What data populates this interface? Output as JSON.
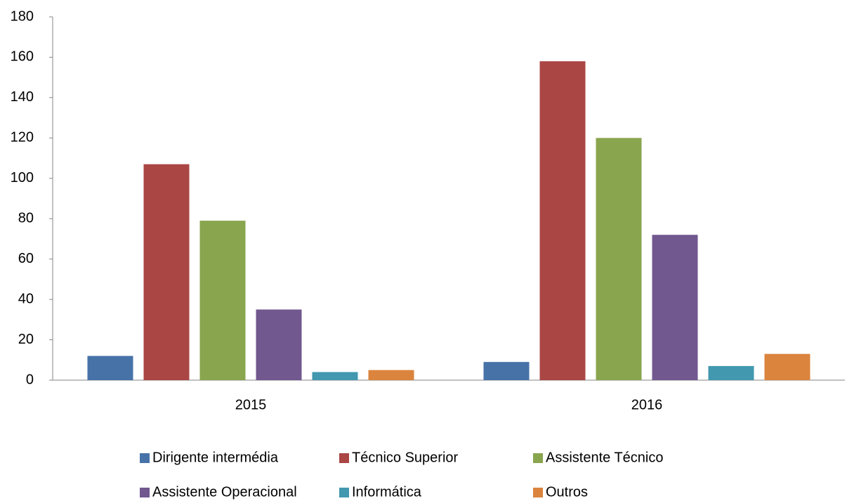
{
  "chart_data": {
    "type": "bar",
    "categories": [
      "2015",
      "2016"
    ],
    "series": [
      {
        "name": "Dirigente intermédia",
        "color": "#4672a8",
        "values": [
          12,
          9
        ]
      },
      {
        "name": "Técnico Superior",
        "color": "#aa4644",
        "values": [
          107,
          158
        ]
      },
      {
        "name": "Assistente Técnico",
        "color": "#89a54e",
        "values": [
          79,
          120
        ]
      },
      {
        "name": "Assistente Operacional",
        "color": "#71588f",
        "values": [
          35,
          72
        ]
      },
      {
        "name": "Informática",
        "color": "#4298af",
        "values": [
          4,
          7
        ]
      },
      {
        "name": "Outros",
        "color": "#db843d",
        "values": [
          5,
          13
        ]
      }
    ],
    "ylim": [
      0,
      180
    ],
    "yticks": [
      0,
      20,
      40,
      60,
      80,
      100,
      120,
      140,
      160,
      180
    ],
    "grid": false
  }
}
